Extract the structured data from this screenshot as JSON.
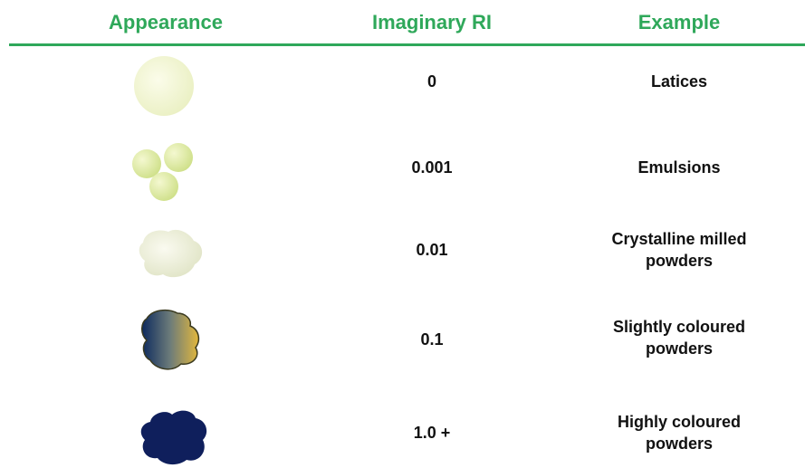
{
  "header": [
    "Appearance",
    "Imaginary RI",
    "Example"
  ],
  "rows": [
    [
      "0",
      "Latices"
    ],
    [
      "0.001",
      "Emulsions"
    ],
    [
      "0.01",
      "Crystalline milled powders"
    ],
    [
      "0.1",
      "Slightly coloured powders"
    ],
    [
      "1.0 +",
      "Highly coloured powders"
    ]
  ]
}
